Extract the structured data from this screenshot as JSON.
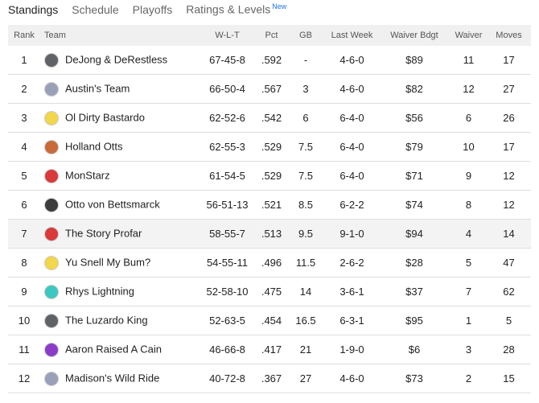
{
  "tabs": [
    "Standings",
    "Schedule",
    "Playoffs",
    "Ratings & Levels"
  ],
  "new_badge": "New",
  "table": {
    "columns": [
      "Rank",
      "Team",
      "W-L-T",
      "Pct",
      "GB",
      "Last Week",
      "Waiver Bdgt",
      "Waiver",
      "Moves"
    ],
    "rows": [
      [
        1,
        "DeJong & DeRestless",
        "67-45-8",
        ".592",
        "-",
        "4-6-0",
        "$89",
        11,
        17
      ],
      [
        2,
        "Austin's Team",
        "66-50-4",
        ".567",
        3,
        "4-6-0",
        "$82",
        12,
        27
      ],
      [
        3,
        "Ol Dirty Bastardo",
        "62-52-6",
        ".542",
        6,
        "6-4-0",
        "$56",
        6,
        26
      ],
      [
        4,
        "Holland Otts",
        "62-55-3",
        ".529",
        7.5,
        "6-4-0",
        "$79",
        10,
        17
      ],
      [
        5,
        "MonStarz",
        "61-54-5",
        ".529",
        7.5,
        "6-4-0",
        "$71",
        9,
        12
      ],
      [
        6,
        "Otto von Bettsmarck",
        "56-51-13",
        ".521",
        8.5,
        "6-2-2",
        "$74",
        8,
        12
      ],
      [
        7,
        "The Story Profar",
        "58-55-7",
        ".513",
        9.5,
        "9-1-0",
        "$94",
        4,
        14
      ],
      [
        8,
        "Yu Snell My Bum?",
        "54-55-11",
        ".496",
        11.5,
        "2-6-2",
        "$28",
        5,
        47
      ],
      [
        9,
        "Rhys Lightning",
        "52-58-10",
        ".475",
        14,
        "3-6-1",
        "$37",
        7,
        62
      ],
      [
        10,
        "The Luzardo King",
        "52-63-5",
        ".454",
        16.5,
        "6-3-1",
        "$95",
        1,
        5
      ],
      [
        11,
        "Aaron Raised A Cain",
        "46-66-8",
        ".417",
        21,
        "1-9-0",
        "$6",
        3,
        28
      ],
      [
        12,
        "Madison's Wild Ride",
        "40-72-8",
        ".367",
        27,
        "4-6-0",
        "$73",
        2,
        15
      ]
    ]
  }
}
